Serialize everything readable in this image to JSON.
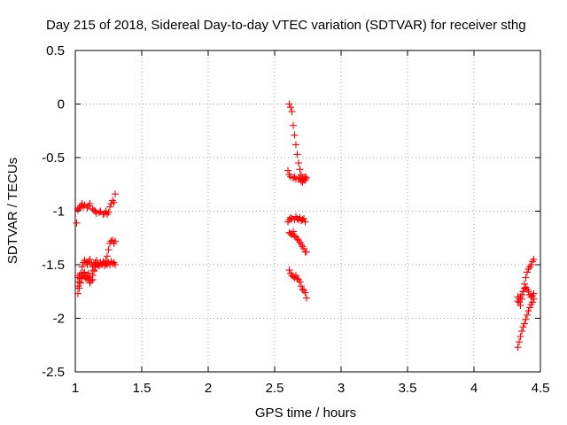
{
  "chart_data": {
    "type": "scatter",
    "title": "Day 215 of 2018, Sidereal Day-to-day VTEC variation (SDTVAR) for receiver sthg",
    "xlabel": "GPS time / hours",
    "ylabel": "SDTVAR / TECUs",
    "xlim": [
      1,
      4.5
    ],
    "ylim": [
      -2.5,
      0.5
    ],
    "xticks": [
      1,
      1.5,
      2,
      2.5,
      3,
      3.5,
      4,
      4.5
    ],
    "xtick_labels": [
      "1",
      "1.5",
      "2",
      "2.5",
      "3",
      "3.5",
      "4",
      "4.5"
    ],
    "yticks": [
      0.5,
      0,
      -0.5,
      -1,
      -1.5,
      -2,
      -2.5
    ],
    "ytick_labels": [
      "0.5",
      "0",
      "-0.5",
      "-1",
      "-1.5",
      "-2",
      "-2.5"
    ],
    "grid": true,
    "marker": "plus",
    "marker_color": "#ff0000",
    "series": [
      {
        "name": "SDTVAR",
        "x": [
          1.02,
          1.03,
          1.04,
          1.05,
          1.06,
          1.07,
          1.09,
          1.1,
          1.11,
          1.13,
          1.14,
          1.15,
          1.16,
          1.18,
          1.19,
          1.21,
          1.22,
          1.23,
          1.24,
          1.25,
          1.26,
          1.27,
          1.28,
          1.29,
          1.3,
          1.02,
          1.03,
          1.04,
          1.05,
          1.06,
          1.07,
          1.08,
          1.09,
          1.1,
          1.11,
          1.12,
          1.13,
          1.14,
          1.15,
          1.16,
          1.17,
          1.18,
          1.19,
          1.2,
          1.21,
          1.22,
          1.23,
          1.24,
          1.25,
          1.26,
          1.27,
          1.28,
          1.29,
          1.3,
          1.02,
          1.03,
          1.04,
          1.05,
          1.06,
          1.07,
          1.08,
          1.09,
          1.1,
          1.11,
          1.12,
          1.13,
          1.14,
          1.15,
          1.16,
          1.17,
          1.18,
          1.19,
          1.2,
          1.21,
          1.22,
          1.23,
          1.24,
          1.25,
          1.26,
          1.27,
          1.28,
          1.29,
          1.3,
          1.02,
          1.03,
          1.04,
          1.05,
          1.06,
          1.07,
          1.08,
          1.09,
          1.1,
          1.11,
          1.12,
          1.13,
          1.14,
          1.15,
          1.02,
          1.01,
          2.61,
          2.62,
          2.63,
          2.64,
          2.65,
          2.66,
          2.67,
          2.68,
          2.69,
          2.7,
          2.71,
          2.72,
          2.73,
          2.74,
          2.6,
          2.61,
          2.62,
          2.64,
          2.65,
          2.66,
          2.68,
          2.69,
          2.7,
          2.71,
          2.72,
          2.73,
          2.6,
          2.61,
          2.62,
          2.63,
          2.65,
          2.66,
          2.67,
          2.68,
          2.69,
          2.7,
          2.71,
          2.72,
          2.73,
          2.61,
          2.62,
          2.63,
          2.64,
          2.65,
          2.66,
          2.67,
          2.68,
          2.69,
          2.7,
          2.71,
          2.72,
          2.73,
          2.74,
          2.61,
          2.62,
          2.63,
          2.64,
          2.65,
          2.66,
          2.67,
          2.68,
          2.69,
          2.7,
          2.71,
          2.72,
          2.73,
          2.74,
          4.33,
          4.34,
          4.35,
          4.36,
          4.37,
          4.38,
          4.39,
          4.4,
          4.41,
          4.42,
          4.43,
          4.44,
          4.45,
          4.33,
          4.34,
          4.35,
          4.36,
          4.37,
          4.38,
          4.39,
          4.4,
          4.41,
          4.42,
          4.43,
          4.44,
          4.45,
          4.33,
          4.34,
          4.35,
          4.36,
          4.37,
          4.38,
          4.39,
          4.4,
          4.41,
          4.42,
          4.43,
          4.44,
          4.45
        ],
        "y": [
          -0.98,
          -0.97,
          -0.95,
          -0.93,
          -0.96,
          -0.94,
          -0.97,
          -0.95,
          -0.93,
          -0.98,
          -0.99,
          -1.0,
          -1.02,
          -1.01,
          -1.0,
          -1.03,
          -1.02,
          -1.0,
          -1.03,
          -1.01,
          -0.96,
          -0.93,
          -0.9,
          -0.92,
          -0.84,
          -1.62,
          -1.6,
          -1.58,
          -1.52,
          -1.48,
          -1.46,
          -1.48,
          -1.5,
          -1.47,
          -1.45,
          -1.49,
          -1.52,
          -1.5,
          -1.48,
          -1.46,
          -1.49,
          -1.51,
          -1.48,
          -1.5,
          -1.47,
          -1.49,
          -1.46,
          -1.42,
          -1.36,
          -1.3,
          -1.28,
          -1.27,
          -1.3,
          -1.28,
          -1.7,
          -1.66,
          -1.63,
          -1.6,
          -1.58,
          -1.57,
          -1.6,
          -1.62,
          -1.64,
          -1.67,
          -1.64,
          -1.6,
          -1.56,
          -1.52,
          -1.5,
          -1.5,
          -1.51,
          -1.49,
          -1.5,
          -1.48,
          -1.51,
          -1.49,
          -1.5,
          -1.48,
          -1.5,
          -1.47,
          -1.49,
          -1.48,
          -1.5,
          -1.77,
          -1.72,
          -1.67,
          -1.62,
          -1.6,
          -1.61,
          -1.63,
          -1.62,
          -1.58,
          -1.62,
          -1.65,
          -1.64,
          -1.55,
          -1.52,
          -0.99,
          -1.11,
          0.0,
          -0.03,
          -0.07,
          -0.2,
          -0.29,
          -0.38,
          -0.47,
          -0.55,
          -0.61,
          -0.66,
          -0.69,
          -0.71,
          -0.71,
          -0.69,
          -0.62,
          -0.66,
          -0.68,
          -0.69,
          -0.68,
          -0.7,
          -0.7,
          -0.69,
          -0.72,
          -0.73,
          -0.7,
          -0.68,
          -1.1,
          -1.08,
          -1.06,
          -1.07,
          -1.08,
          -1.05,
          -1.07,
          -1.08,
          -1.06,
          -1.09,
          -1.08,
          -1.07,
          -1.1,
          -1.2,
          -1.21,
          -1.22,
          -1.19,
          -1.23,
          -1.24,
          -1.26,
          -1.27,
          -1.29,
          -1.31,
          -1.33,
          -1.35,
          -1.38,
          -1.38,
          -1.55,
          -1.58,
          -1.6,
          -1.61,
          -1.62,
          -1.6,
          -1.63,
          -1.64,
          -1.66,
          -1.7,
          -1.73,
          -1.74,
          -1.76,
          -1.81,
          -2.27,
          -2.22,
          -2.17,
          -2.12,
          -2.08,
          -2.05,
          -2.01,
          -1.97,
          -1.93,
          -1.9,
          -1.87,
          -1.85,
          -1.82,
          -1.84,
          -1.82,
          -1.8,
          -1.78,
          -1.75,
          -1.72,
          -1.71,
          -1.73,
          -1.75,
          -1.78,
          -1.8,
          -1.79,
          -1.77,
          -1.8,
          -1.85,
          -1.88,
          -1.82,
          -1.75,
          -1.68,
          -1.62,
          -1.57,
          -1.54,
          -1.52,
          -1.5,
          -1.47,
          -1.45
        ]
      }
    ]
  }
}
